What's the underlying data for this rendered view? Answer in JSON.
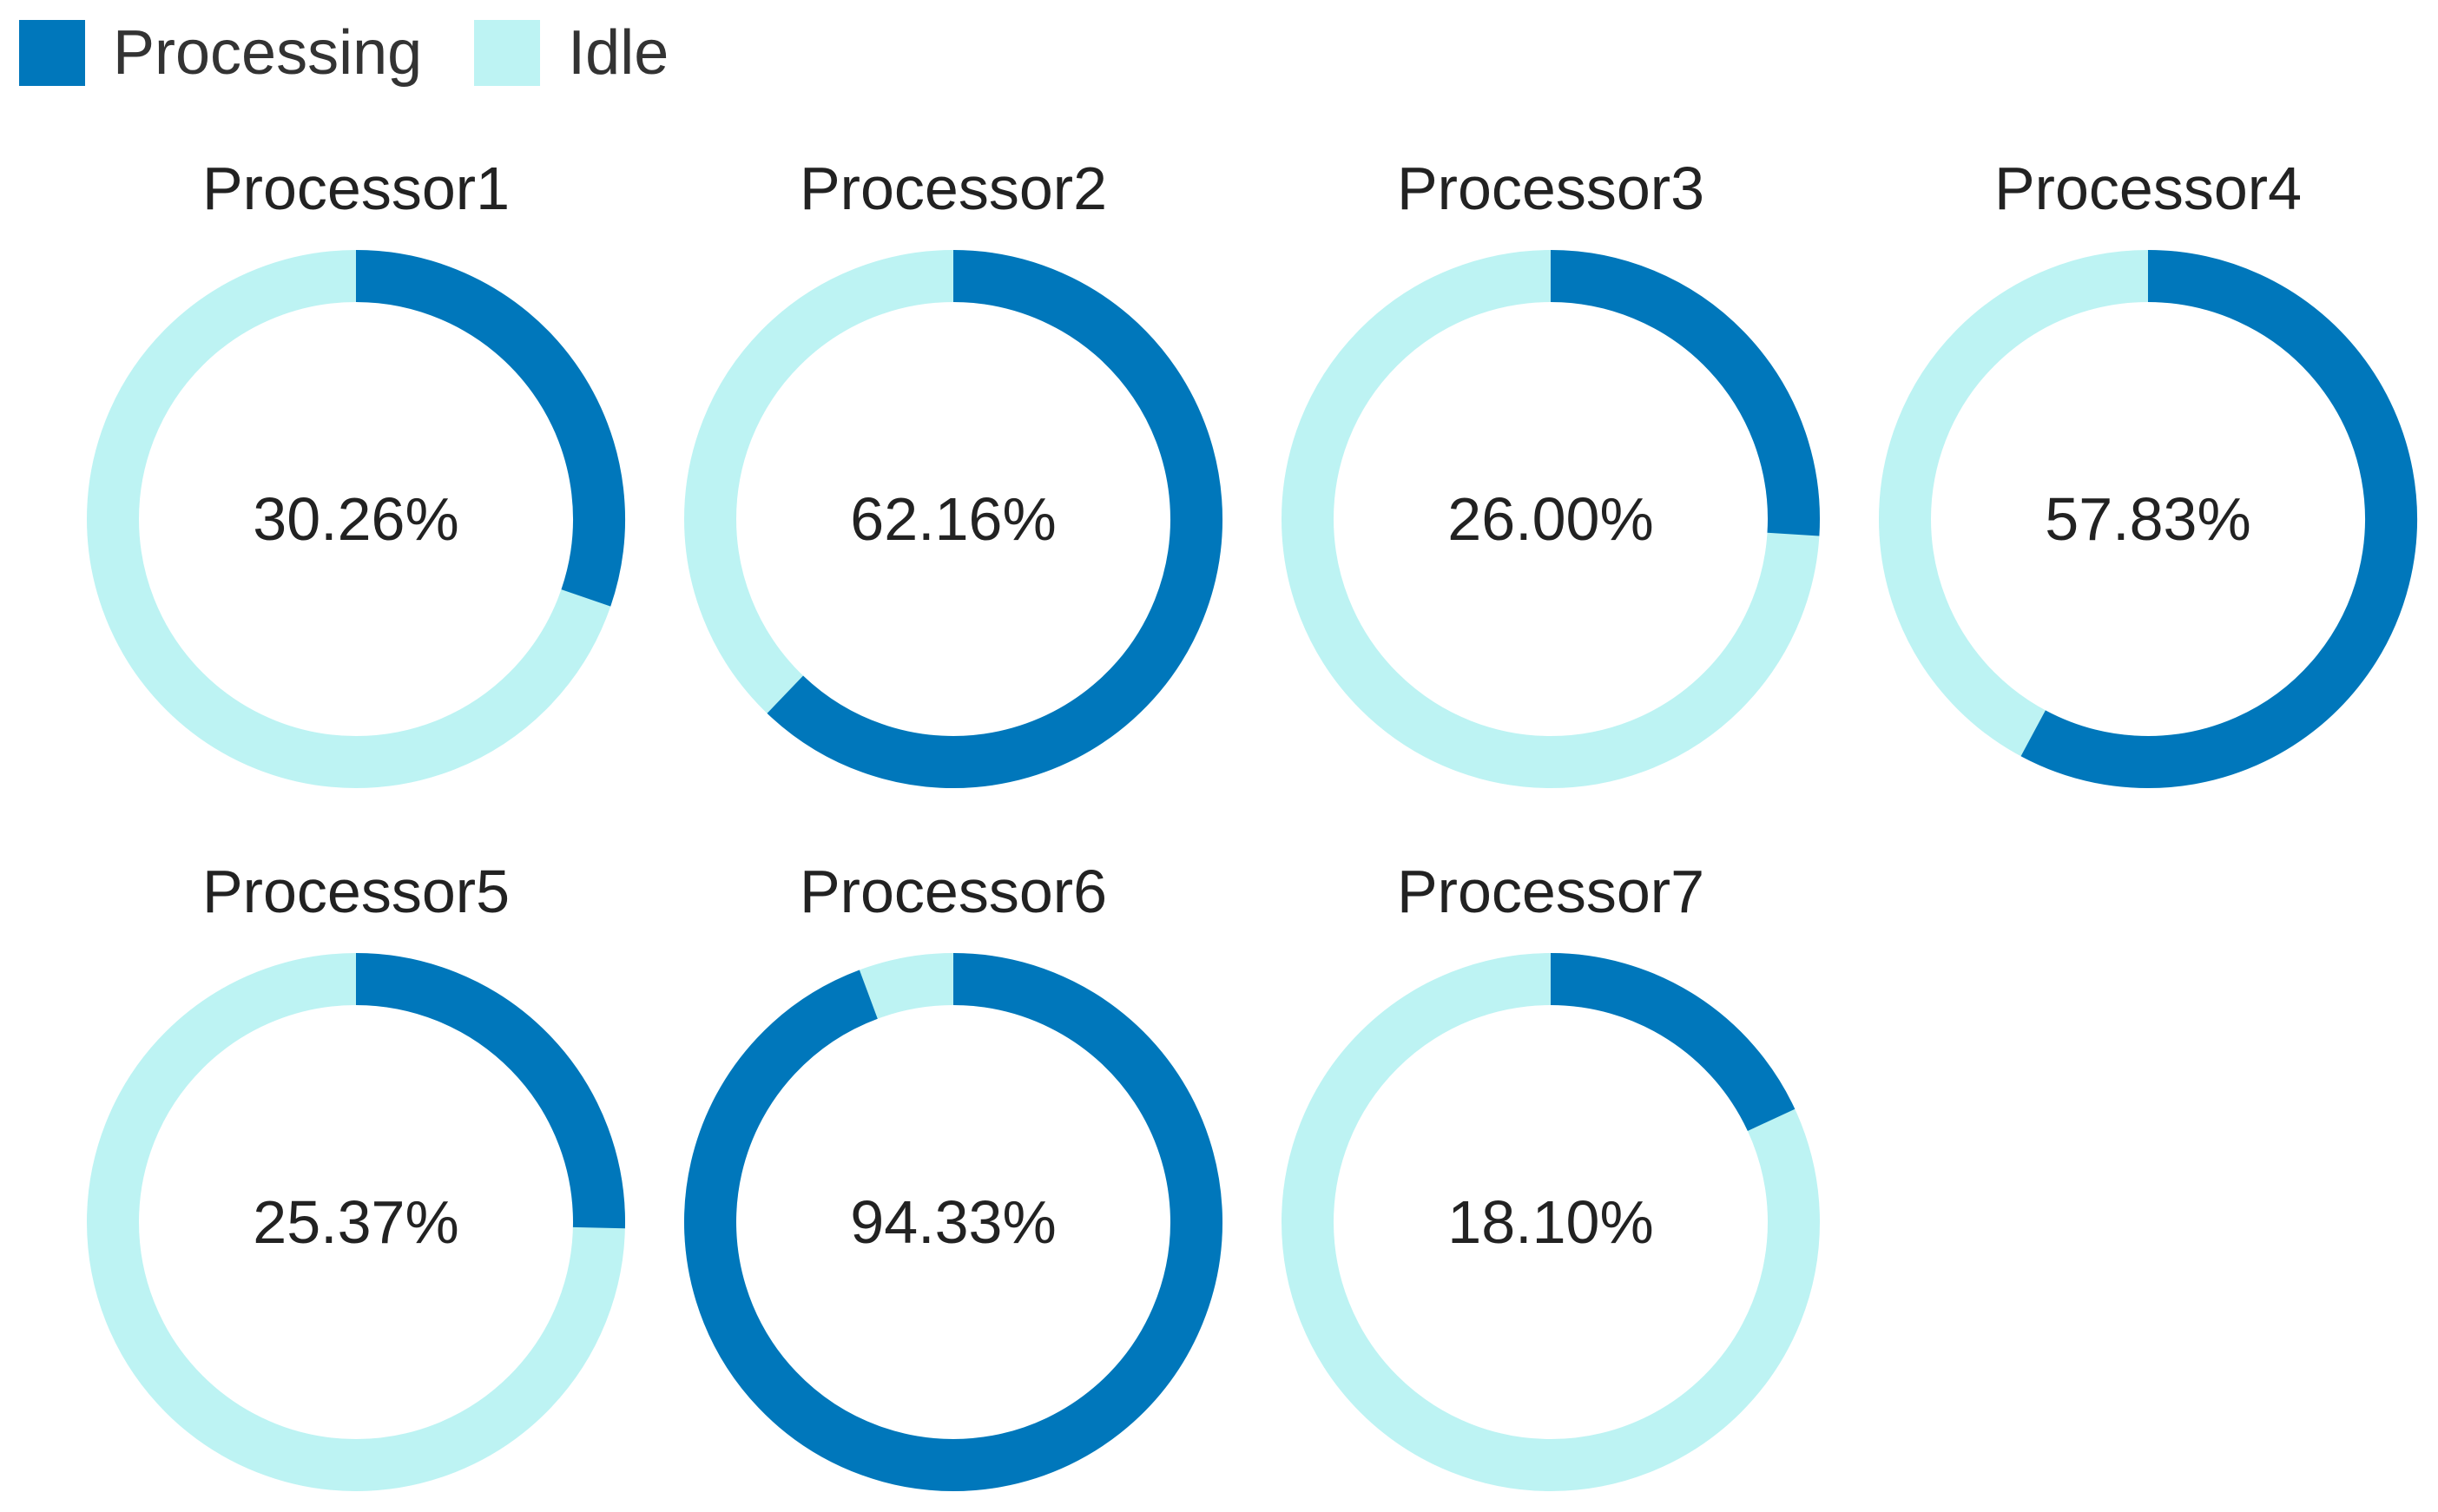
{
  "legend": {
    "items": [
      {
        "label": "Processing",
        "color": "#0077bb"
      },
      {
        "label": "Idle",
        "color": "#bdf3f3"
      }
    ]
  },
  "chart_data": {
    "type": "pie",
    "variant": "donut",
    "legend_position": "top-left",
    "series_names": [
      "Processing",
      "Idle"
    ],
    "colors": {
      "processing": "#0077bb",
      "idle": "#bdf3f3"
    },
    "charts": [
      {
        "title": "Processor1",
        "processing": 30.26,
        "idle": 69.74,
        "label": "30.26%"
      },
      {
        "title": "Processor2",
        "processing": 62.16,
        "idle": 37.84,
        "label": "62.16%"
      },
      {
        "title": "Processor3",
        "processing": 26.0,
        "idle": 74.0,
        "label": "26.00%"
      },
      {
        "title": "Processor4",
        "processing": 57.83,
        "idle": 42.17,
        "label": "57.83%"
      },
      {
        "title": "Processor5",
        "processing": 25.37,
        "idle": 74.63,
        "label": "25.37%"
      },
      {
        "title": "Processor6",
        "processing": 94.33,
        "idle": 5.67,
        "label": "94.33%"
      },
      {
        "title": "Processor7",
        "processing": 18.1,
        "idle": 81.9,
        "label": "18.10%"
      }
    ]
  }
}
